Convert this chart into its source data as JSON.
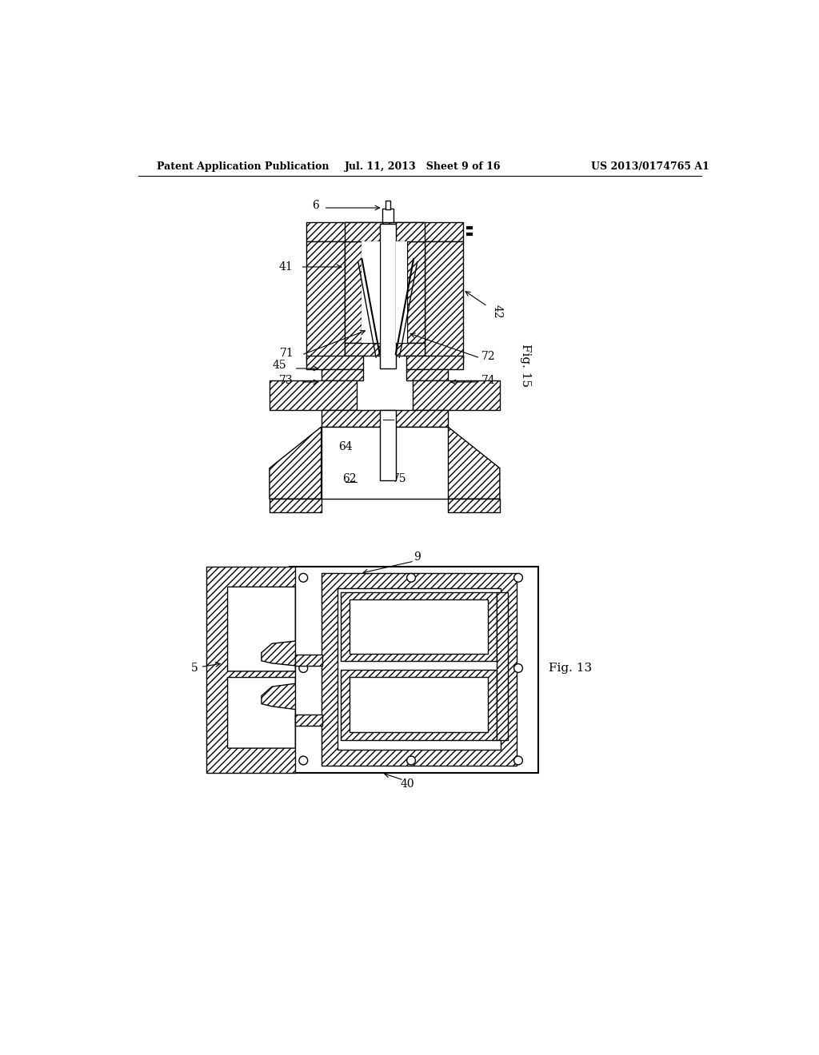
{
  "background_color": "#ffffff",
  "header_left": "Patent Application Publication",
  "header_center": "Jul. 11, 2013   Sheet 9 of 16",
  "header_right": "US 2013/0174765 A1",
  "fig15_label": "Fig. 15",
  "fig13_label": "Fig. 13",
  "line_color": "#000000"
}
